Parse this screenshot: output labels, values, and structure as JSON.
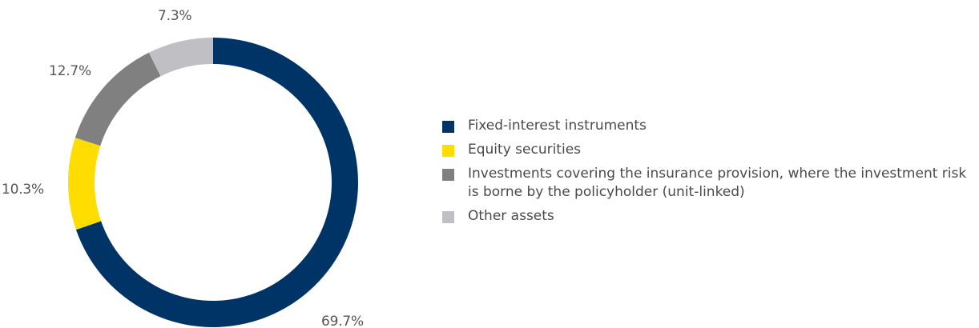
{
  "chart_data": {
    "type": "donut",
    "series": [
      {
        "name": "Fixed-interest instruments",
        "value": 69.7,
        "label": "69.7%",
        "color": "#003366"
      },
      {
        "name": "Equity securities",
        "value": 10.3,
        "label": "10.3%",
        "color": "#ffdd00"
      },
      {
        "name": "Investments covering the insurance provision, where the investment risk is borne by the policyholder (unit-linked)",
        "value": 12.7,
        "label": "12.7%",
        "color": "#808080"
      },
      {
        "name": "Other assets",
        "value": 7.3,
        "label": "7.3%",
        "color": "#c0c0c4"
      }
    ],
    "start": "top",
    "direction": "clockwise",
    "legend_position": "right"
  }
}
